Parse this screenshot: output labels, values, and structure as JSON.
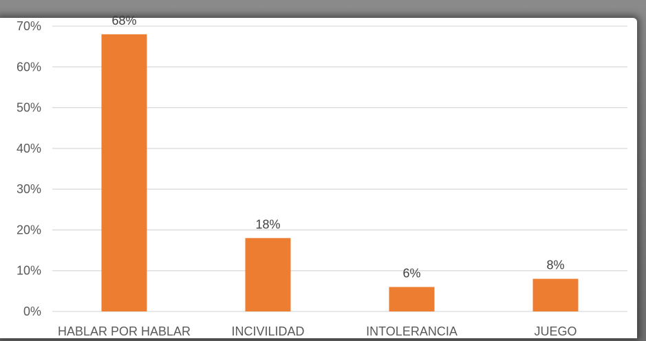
{
  "chart_data": {
    "type": "bar",
    "categories": [
      "HABLAR POR HABLAR",
      "INCIVILIDAD",
      "INTOLERANCIA",
      "JUEGO"
    ],
    "values": [
      68,
      18,
      6,
      8
    ],
    "data_labels": [
      "68%",
      "18%",
      "6%",
      "8%"
    ],
    "title": "",
    "xlabel": "",
    "ylabel": "",
    "ylim": [
      0,
      70
    ],
    "yticks": [
      0,
      10,
      20,
      30,
      40,
      50,
      60,
      70
    ],
    "ytick_labels": [
      "0%",
      "10%",
      "20%",
      "30%",
      "40%",
      "50%",
      "60%",
      "70%"
    ],
    "grid": true,
    "legend": "none",
    "bar_color": "#ED7D31",
    "grid_color": "#D9D9D9"
  }
}
